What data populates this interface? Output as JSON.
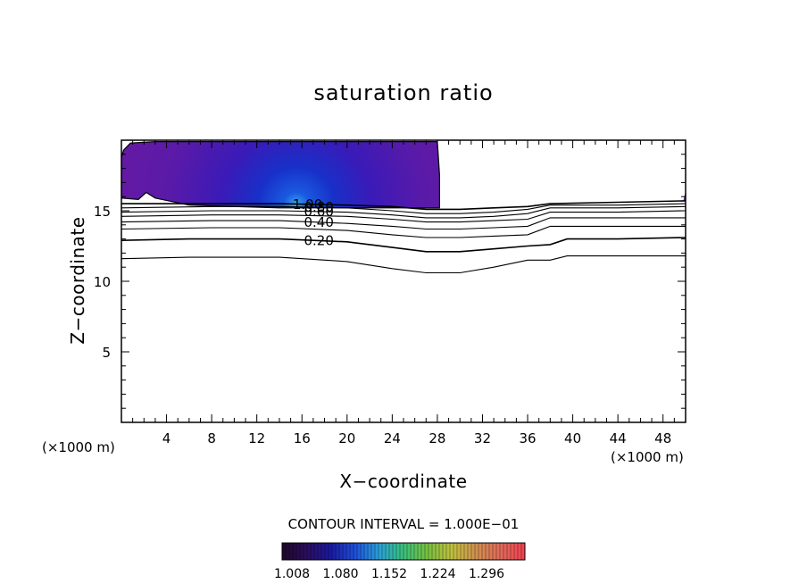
{
  "chart_data": {
    "type": "contour",
    "title": "saturation ratio",
    "xlabel": "X−coordinate",
    "ylabel": "Z−coordinate",
    "x_unit_label": "(×1000 m)",
    "xlim": [
      0,
      50
    ],
    "ylim": [
      0,
      20
    ],
    "x_ticks": [
      4,
      8,
      12,
      16,
      20,
      24,
      28,
      32,
      36,
      40,
      44,
      48
    ],
    "y_ticks": [
      5,
      10,
      15
    ],
    "x_tick_labels": [
      "4",
      "8",
      "12",
      "16",
      "20",
      "24",
      "28",
      "32",
      "36",
      "40",
      "44",
      "48"
    ],
    "y_tick_labels": [
      "5",
      "10",
      "15"
    ],
    "contour_interval_text": "CONTOUR INTERVAL = 1.000E−01",
    "contour_interval": 0.1,
    "contours": [
      {
        "level": 0.1,
        "label": "",
        "points": [
          [
            0,
            11.6
          ],
          [
            6,
            11.7
          ],
          [
            14,
            11.7
          ],
          [
            20,
            11.4
          ],
          [
            24,
            10.9
          ],
          [
            27,
            10.6
          ],
          [
            30,
            10.6
          ],
          [
            33,
            11.0
          ],
          [
            36,
            11.5
          ],
          [
            38,
            11.5
          ],
          [
            39.5,
            11.8
          ],
          [
            44,
            11.8
          ],
          [
            50,
            11.8
          ]
        ]
      },
      {
        "level": 0.2,
        "label": "0.20",
        "points": [
          [
            0,
            12.9
          ],
          [
            6,
            13.0
          ],
          [
            14,
            13.0
          ],
          [
            20,
            12.8
          ],
          [
            24,
            12.4
          ],
          [
            27,
            12.1
          ],
          [
            30,
            12.1
          ],
          [
            33,
            12.3
          ],
          [
            36,
            12.5
          ],
          [
            38,
            12.6
          ],
          [
            39.5,
            13.0
          ],
          [
            44,
            13.0
          ],
          [
            50,
            13.1
          ]
        ]
      },
      {
        "level": 0.3,
        "label": "",
        "points": [
          [
            0,
            13.7
          ],
          [
            8,
            13.8
          ],
          [
            14,
            13.8
          ],
          [
            20,
            13.6
          ],
          [
            24,
            13.3
          ],
          [
            27,
            13.1
          ],
          [
            30,
            13.1
          ],
          [
            33,
            13.2
          ],
          [
            36,
            13.3
          ],
          [
            38,
            13.9
          ],
          [
            44,
            13.9
          ],
          [
            50,
            13.9
          ]
        ]
      },
      {
        "level": 0.4,
        "label": "0.40",
        "points": [
          [
            0,
            14.2
          ],
          [
            8,
            14.3
          ],
          [
            14,
            14.3
          ],
          [
            20,
            14.1
          ],
          [
            24,
            13.9
          ],
          [
            27,
            13.7
          ],
          [
            30,
            13.7
          ],
          [
            33,
            13.8
          ],
          [
            36,
            13.9
          ],
          [
            38,
            14.5
          ],
          [
            44,
            14.5
          ],
          [
            50,
            14.5
          ]
        ]
      },
      {
        "level": 0.5,
        "label": "",
        "points": [
          [
            0,
            14.6
          ],
          [
            8,
            14.7
          ],
          [
            14,
            14.7
          ],
          [
            20,
            14.6
          ],
          [
            24,
            14.4
          ],
          [
            27,
            14.2
          ],
          [
            30,
            14.2
          ],
          [
            33,
            14.3
          ],
          [
            36,
            14.4
          ],
          [
            38,
            14.9
          ],
          [
            44,
            14.9
          ],
          [
            50,
            15.0
          ]
        ]
      },
      {
        "level": 0.6,
        "label": "0.60",
        "points": [
          [
            0,
            14.9
          ],
          [
            8,
            15.0
          ],
          [
            14,
            15.0
          ],
          [
            20,
            14.9
          ],
          [
            24,
            14.7
          ],
          [
            27,
            14.5
          ],
          [
            30,
            14.5
          ],
          [
            33,
            14.6
          ],
          [
            36,
            14.8
          ],
          [
            38,
            15.2
          ],
          [
            44,
            15.2
          ],
          [
            50,
            15.3
          ]
        ]
      },
      {
        "level": 0.8,
        "label": "0.80",
        "points": [
          [
            0,
            15.2
          ],
          [
            8,
            15.3
          ],
          [
            14,
            15.3
          ],
          [
            20,
            15.2
          ],
          [
            24,
            15.0
          ],
          [
            27,
            14.8
          ],
          [
            30,
            14.8
          ],
          [
            33,
            14.9
          ],
          [
            36,
            15.1
          ],
          [
            38,
            15.4
          ],
          [
            44,
            15.4
          ],
          [
            50,
            15.5
          ]
        ]
      },
      {
        "level": 1.0,
        "label": "1.00",
        "points": [
          [
            0,
            15.5
          ],
          [
            8,
            15.5
          ],
          [
            14,
            15.5
          ],
          [
            20,
            15.4
          ],
          [
            24,
            15.3
          ],
          [
            27,
            15.1
          ],
          [
            30,
            15.1
          ],
          [
            33,
            15.2
          ],
          [
            36,
            15.3
          ],
          [
            38,
            15.5
          ],
          [
            44,
            15.6
          ],
          [
            50,
            15.7
          ]
        ]
      }
    ],
    "shaded_region": {
      "outline": [
        [
          0,
          15.9
        ],
        [
          1.5,
          15.8
        ],
        [
          2.2,
          16.3
        ],
        [
          3,
          15.9
        ],
        [
          6,
          15.4
        ],
        [
          14,
          15.2
        ],
        [
          28.2,
          15.2
        ],
        [
          28.2,
          17.5
        ],
        [
          28,
          19.9
        ],
        [
          3,
          19.9
        ],
        [
          0.8,
          19.8
        ],
        [
          0.2,
          19.3
        ],
        [
          0,
          18.8
        ]
      ],
      "core": {
        "x": 15.5,
        "z": 15.4
      }
    },
    "colorbar": {
      "ticks": [
        1.008,
        1.08,
        1.152,
        1.224,
        1.296
      ],
      "tick_labels": [
        "1.008",
        "1.080",
        "1.152",
        "1.224",
        "1.296"
      ],
      "colors": [
        "#1e0828",
        "#2a0d5c",
        "#1a1a9e",
        "#1f4fd8",
        "#2aa0d8",
        "#3ac07a",
        "#7ac040",
        "#c0c040",
        "#d09050",
        "#e06a5a",
        "#f04050"
      ]
    }
  }
}
